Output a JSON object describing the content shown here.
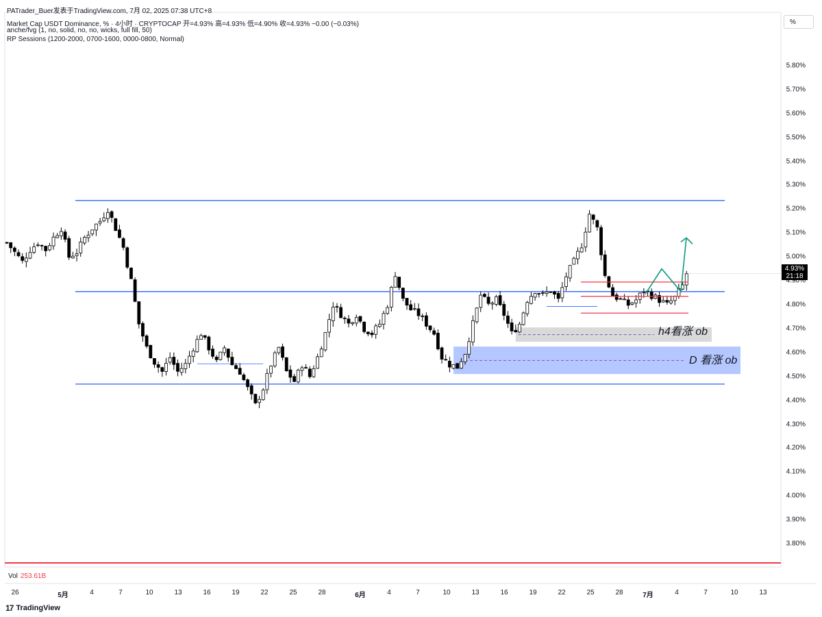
{
  "header": {
    "attribution": "PATrader_Buer发表于TradingView.com,  7月 02, 2025 07:38 UTC+8",
    "symbol_line": "Market Cap USDT Dominance, % · 4小时 · CRYPTOCAP  开=4.93%  高=4.93%  低=4.90%  收=4.93%  −0.00 (−0.03%)",
    "indicator1": "anche/fvg (1, no, solid, no, no, wicks, full fill, 50)",
    "indicator2": "RP Sessions (1200-2000, 0700-1600, 0000-0800, Normal)",
    "unit_button": "%"
  },
  "price_tag": {
    "value": "4.93%",
    "countdown": "21:18"
  },
  "volume": {
    "label": "Vol",
    "value": "253.61B"
  },
  "brand": {
    "name": "TradingView",
    "mark": "17"
  },
  "colors": {
    "level_line": "#2962ff",
    "range_line": "#f23645",
    "projection": "#089981",
    "zone_h4": "#d9d9d9",
    "zone_d": "#b5c7ff",
    "candle_up": "#ffffff",
    "candle_down": "#000000"
  },
  "chart_data": {
    "type": "candlestick",
    "timeframe": "4小时",
    "ylim": [
      3.72,
      5.88
    ],
    "y_ticks": [
      "5.80%",
      "5.70%",
      "5.60%",
      "5.50%",
      "5.40%",
      "5.30%",
      "5.20%",
      "5.10%",
      "5.00%",
      "4.90%",
      "4.80%",
      "4.70%",
      "4.60%",
      "4.50%",
      "4.40%",
      "4.30%",
      "4.20%",
      "4.10%",
      "4.00%",
      "3.90%",
      "3.80%"
    ],
    "x_ticks": [
      "26",
      "5月",
      "4",
      "7",
      "10",
      "13",
      "16",
      "19",
      "22",
      "25",
      "28",
      "6月",
      "4",
      "7",
      "10",
      "13",
      "16",
      "19",
      "22",
      "25",
      "28",
      "7月",
      "4",
      "7",
      "10",
      "13"
    ],
    "price_path": [
      [
        0,
        5.06
      ],
      [
        2,
        5.02
      ],
      [
        4,
        4.98
      ],
      [
        6,
        5.03
      ],
      [
        8,
        5.06
      ],
      [
        10,
        5.03
      ],
      [
        12,
        5.08
      ],
      [
        14,
        5.12
      ],
      [
        16,
        5.0
      ],
      [
        18,
        5.02
      ],
      [
        20,
        5.08
      ],
      [
        22,
        5.12
      ],
      [
        24,
        5.15
      ],
      [
        26,
        5.2
      ],
      [
        28,
        5.12
      ],
      [
        30,
        5.04
      ],
      [
        32,
        4.9
      ],
      [
        34,
        4.72
      ],
      [
        36,
        4.62
      ],
      [
        38,
        4.56
      ],
      [
        40,
        4.52
      ],
      [
        42,
        4.58
      ],
      [
        44,
        4.52
      ],
      [
        46,
        4.55
      ],
      [
        48,
        4.62
      ],
      [
        50,
        4.68
      ],
      [
        52,
        4.62
      ],
      [
        54,
        4.56
      ],
      [
        56,
        4.62
      ],
      [
        58,
        4.55
      ],
      [
        60,
        4.52
      ],
      [
        62,
        4.45
      ],
      [
        64,
        4.38
      ],
      [
        66,
        4.45
      ],
      [
        68,
        4.55
      ],
      [
        70,
        4.62
      ],
      [
        72,
        4.52
      ],
      [
        74,
        4.48
      ],
      [
        76,
        4.55
      ],
      [
        78,
        4.5
      ],
      [
        80,
        4.58
      ],
      [
        82,
        4.68
      ],
      [
        84,
        4.8
      ],
      [
        86,
        4.76
      ],
      [
        88,
        4.72
      ],
      [
        90,
        4.76
      ],
      [
        92,
        4.7
      ],
      [
        94,
        4.68
      ],
      [
        96,
        4.72
      ],
      [
        98,
        4.8
      ],
      [
        100,
        4.93
      ],
      [
        102,
        4.82
      ],
      [
        104,
        4.78
      ],
      [
        106,
        4.76
      ],
      [
        108,
        4.72
      ],
      [
        110,
        4.68
      ],
      [
        112,
        4.58
      ],
      [
        114,
        4.55
      ],
      [
        116,
        4.54
      ],
      [
        118,
        4.6
      ],
      [
        120,
        4.72
      ],
      [
        122,
        4.84
      ],
      [
        124,
        4.8
      ],
      [
        126,
        4.82
      ],
      [
        128,
        4.76
      ],
      [
        130,
        4.68
      ],
      [
        132,
        4.72
      ],
      [
        134,
        4.82
      ],
      [
        136,
        4.86
      ],
      [
        138,
        4.84
      ],
      [
        140,
        4.86
      ],
      [
        142,
        4.82
      ],
      [
        144,
        4.92
      ],
      [
        146,
        4.98
      ],
      [
        148,
        5.05
      ],
      [
        150,
        5.18
      ],
      [
        152,
        5.12
      ],
      [
        154,
        4.92
      ],
      [
        156,
        4.84
      ],
      [
        158,
        4.82
      ],
      [
        160,
        4.8
      ],
      [
        162,
        4.82
      ],
      [
        164,
        4.86
      ],
      [
        166,
        4.84
      ],
      [
        168,
        4.82
      ],
      [
        170,
        4.8
      ],
      [
        172,
        4.83
      ],
      [
        174,
        4.88
      ],
      [
        175,
        4.93
      ]
    ],
    "levels": [
      {
        "price": 5.236,
        "from_bar": 0,
        "to_bar": 175,
        "note": "upper"
      },
      {
        "price": 4.855,
        "from_bar": 0,
        "to_bar": 175,
        "note": "middle"
      },
      {
        "price": 4.468,
        "from_bar": 0,
        "to_bar": 175,
        "note": "lower"
      }
    ],
    "red_range": [
      4.895,
      4.835,
      4.765
    ],
    "zones": [
      {
        "label": "h4看涨 ob",
        "top": 4.705,
        "bottom": 4.645,
        "mid": 4.675
      },
      {
        "label": "D 看涨 ob",
        "top": 4.625,
        "bottom": 4.51,
        "mid": 4.567
      }
    ],
    "projection": [
      4.93,
      4.95,
      4.855,
      5.08
    ],
    "last_close": 4.93
  }
}
